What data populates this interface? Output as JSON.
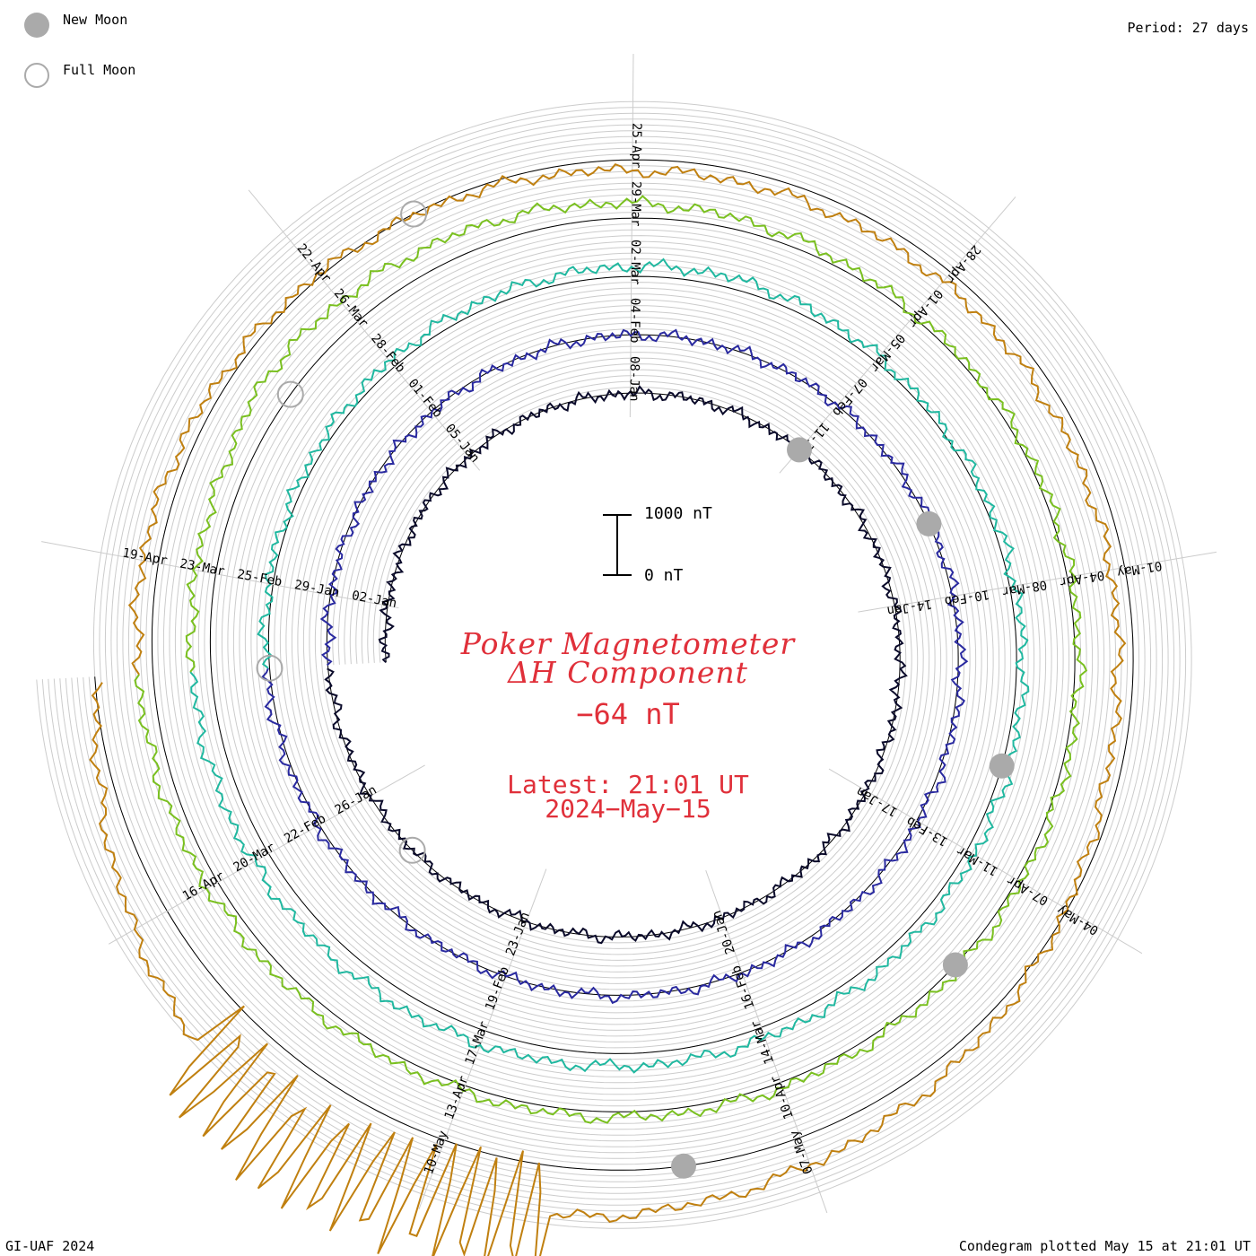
{
  "legend": {
    "new_moon": "New Moon",
    "full_moon": "Full Moon",
    "new_moon_color": "#aaaaaa",
    "full_moon_color": "#aaaaaa"
  },
  "period_label": "Period: 27 days",
  "credit": "GI-UAF 2024",
  "plotted_label": "Condegram plotted May 15 at 21:01 UT",
  "title": {
    "line1": "Poker Magnetometer",
    "line2": "ΔH Component",
    "current_value": "−64 nT",
    "latest_time": "Latest: 21:01 UT",
    "latest_date": "2024−May−15"
  },
  "scale_bar": {
    "top_label": "1000 nT",
    "bottom_label": "0 nT",
    "top_value_nT": 1000,
    "bottom_value_nT": 0
  },
  "chart_data": {
    "type": "line",
    "layout": "spiral condegram (polar, clockwise, 27-day period)",
    "title": "Poker Magnetometer ΔH Component",
    "period_days": 27,
    "units": "nT",
    "start_date": "2024-01-01",
    "end_label": "2024-May-15",
    "laps": [
      {
        "name": "lap 1",
        "color": "#0a0a2a",
        "date_labels": [
          "02-Jan",
          "05-Jan",
          "08-Jan",
          "11-Jan",
          "14-Jan",
          "17-Jan",
          "20-Jan",
          "23-Jan",
          "26-Jan"
        ]
      },
      {
        "name": "lap 2",
        "color": "#2a2aa0",
        "date_labels": [
          "29-Jan",
          "01-Feb",
          "04-Feb",
          "07-Feb",
          "10-Feb",
          "13-Feb",
          "16-Feb",
          "19-Feb",
          "22-Feb"
        ]
      },
      {
        "name": "lap 3",
        "color": "#20b8a0",
        "date_labels": [
          "25-Feb",
          "28-Feb",
          "02-Mar",
          "05-Mar",
          "08-Mar",
          "11-Mar",
          "14-Mar",
          "17-Mar",
          "20-Mar"
        ]
      },
      {
        "name": "lap 4",
        "color": "#7ac020",
        "date_labels": [
          "23-Mar",
          "26-Mar",
          "29-Mar",
          "01-Apr",
          "04-Apr",
          "07-Apr",
          "10-Apr",
          "13-Apr",
          "16-Apr"
        ]
      },
      {
        "name": "lap 5",
        "color": "#c08010",
        "date_labels": [
          "19-Apr",
          "22-Apr",
          "25-Apr",
          "28-Apr",
          "01-May",
          "04-May",
          "07-May",
          "10-May"
        ]
      },
      {
        "name": "lap 6",
        "color": "#c02010",
        "date_labels": []
      }
    ],
    "moon_phases": [
      {
        "phase": "new",
        "date": "2024-01-11"
      },
      {
        "phase": "full",
        "date": "2024-01-25"
      },
      {
        "phase": "new",
        "date": "2024-02-09"
      },
      {
        "phase": "full",
        "date": "2024-02-24"
      },
      {
        "phase": "new",
        "date": "2024-03-10"
      },
      {
        "phase": "full",
        "date": "2024-03-25"
      },
      {
        "phase": "new",
        "date": "2024-04-08"
      },
      {
        "phase": "full",
        "date": "2024-04-23"
      },
      {
        "phase": "new",
        "date": "2024-05-08"
      }
    ],
    "deltaH_nT_daily": [
      {
        "date": "2024-01-01",
        "value": 0
      },
      {
        "date": "2024-01-10",
        "value": -10
      },
      {
        "date": "2024-01-20",
        "value": 0
      },
      {
        "date": "2024-02-01",
        "value": -20
      },
      {
        "date": "2024-02-12",
        "value": 40
      },
      {
        "date": "2024-02-20",
        "value": 0
      },
      {
        "date": "2024-03-03",
        "value": 180
      },
      {
        "date": "2024-03-06",
        "value": 60
      },
      {
        "date": "2024-03-24",
        "value": 350
      },
      {
        "date": "2024-03-25",
        "value": 500
      },
      {
        "date": "2024-04-01",
        "value": 60
      },
      {
        "date": "2024-04-13",
        "value": 100
      },
      {
        "date": "2024-04-19",
        "value": 280
      },
      {
        "date": "2024-04-25",
        "value": -180
      },
      {
        "date": "2024-05-02",
        "value": -250
      },
      {
        "date": "2024-05-03",
        "value": -200
      },
      {
        "date": "2024-05-10",
        "value": 1000
      },
      {
        "date": "2024-05-11",
        "value": 1300
      },
      {
        "date": "2024-05-15",
        "value": -64
      }
    ]
  }
}
